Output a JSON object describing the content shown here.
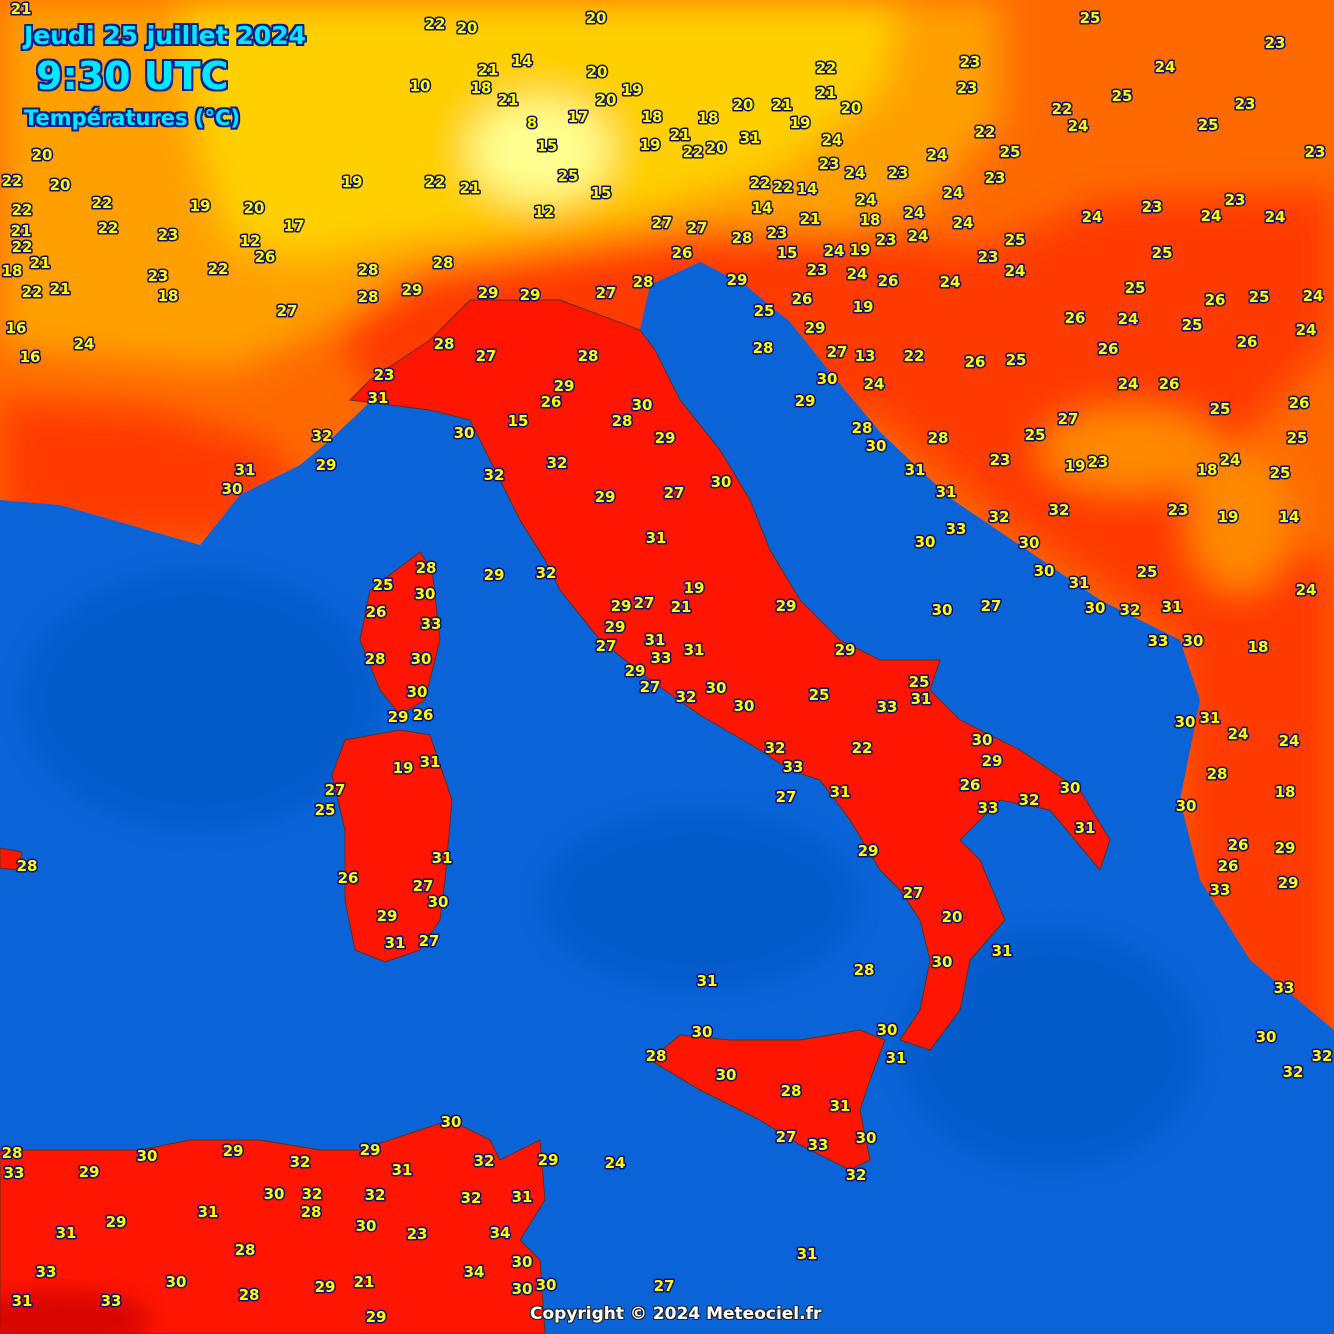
{
  "header": {
    "date": "Jeudi 25 juillet 2024",
    "time": "9:30 UTC",
    "variable": "Températures (°C)"
  },
  "footer": {
    "copyright": "Copyright © 2024 Meteociel.fr"
  },
  "colors": {
    "sea": "#0a64d8",
    "hot_red": "#ff1500",
    "red_orange": "#ff3a00",
    "orange": "#ff6a00",
    "amber": "#ffa000",
    "yellow": "#ffd000",
    "pale_yellow": "#ffff90",
    "label_fill": "#ffff00",
    "label_outline": "#101070",
    "title_color": "#00e8ff"
  },
  "stations": [
    31,
    28,
    30,
    28,
    30,
    28,
    31,
    27,
    33,
    30,
    32,
    30,
    31,
    20,
    30,
    31,
    27,
    29,
    31,
    27,
    33,
    32,
    22,
    30,
    26,
    29,
    33,
    32,
    30,
    31,
    25,
    33,
    31,
    25,
    29,
    29,
    30,
    30,
    32,
    27,
    29,
    33,
    31,
    31,
    27,
    29,
    29,
    27,
    21,
    19,
    31,
    27,
    30,
    29,
    32,
    32,
    29,
    28,
    30,
    15,
    26,
    29,
    28,
    27,
    28,
    30,
    31,
    23,
    32,
    29,
    31,
    30,
    29,
    29,
    29,
    27,
    28,
    28,
    27,
    27,
    26,
    28,
    29,
    25,
    28,
    26,
    29,
    27,
    30,
    13,
    29,
    24,
    22,
    26,
    25,
    26,
    24,
    26,
    28,
    30,
    28,
    31,
    23,
    25,
    27,
    31,
    32,
    33,
    30,
    30,
    30,
    32,
    30,
    27,
    31,
    30,
    25,
    32,
    31,
    33,
    30,
    18,
    30,
    31,
    24,
    24,
    28,
    30,
    18,
    26,
    26,
    33,
    29,
    29,
    33,
    30,
    32,
    32,
    28,
    25,
    26,
    30,
    33,
    28,
    30,
    30,
    29,
    26,
    19,
    31,
    27,
    25,
    31,
    26,
    27,
    30,
    29,
    31,
    27,
    29,
    32,
    28,
    33,
    29,
    30,
    29,
    32,
    29,
    30,
    31,
    32,
    29,
    24,
    30,
    32,
    32,
    32,
    31,
    31,
    28,
    29,
    31,
    30,
    23,
    34,
    28,
    33,
    30,
    21,
    34,
    30,
    30,
    30,
    31,
    33,
    28,
    29,
    29,
    27,
    31,
    28,
    24,
    23,
    24,
    23,
    24,
    25,
    25,
    26,
    25,
    24,
    25,
    24,
    26,
    24,
    26,
    25,
    26,
    25,
    24,
    18,
    25,
    23,
    19,
    14,
    24,
    19,
    23,
    25,
    23,
    24,
    23,
    25,
    22,
    24,
    25,
    23,
    25,
    23,
    22,
    24,
    23,
    24,
    18,
    24,
    24,
    23,
    24,
    24,
    25,
    24,
    23,
    24,
    26,
    24,
    19,
    24,
    19,
    23,
    24,
    15,
    14,
    21,
    23,
    14,
    22,
    22,
    23,
    24,
    20,
    21,
    22,
    23,
    23,
    21,
    20,
    20,
    18,
    19,
    20,
    21,
    22,
    14,
    20,
    19,
    20,
    17,
    18,
    18,
    21,
    19,
    22,
    20,
    31,
    12,
    25,
    15,
    8,
    15,
    21,
    20,
    22,
    22,
    20,
    22,
    22,
    23,
    21,
    18,
    22,
    21,
    23,
    16,
    18,
    21,
    24,
    21,
    16,
    22,
    12,
    17,
    20,
    19,
    22,
    26,
    27,
    28,
    28,
    19,
    10,
    22,
    21
  ]
}
